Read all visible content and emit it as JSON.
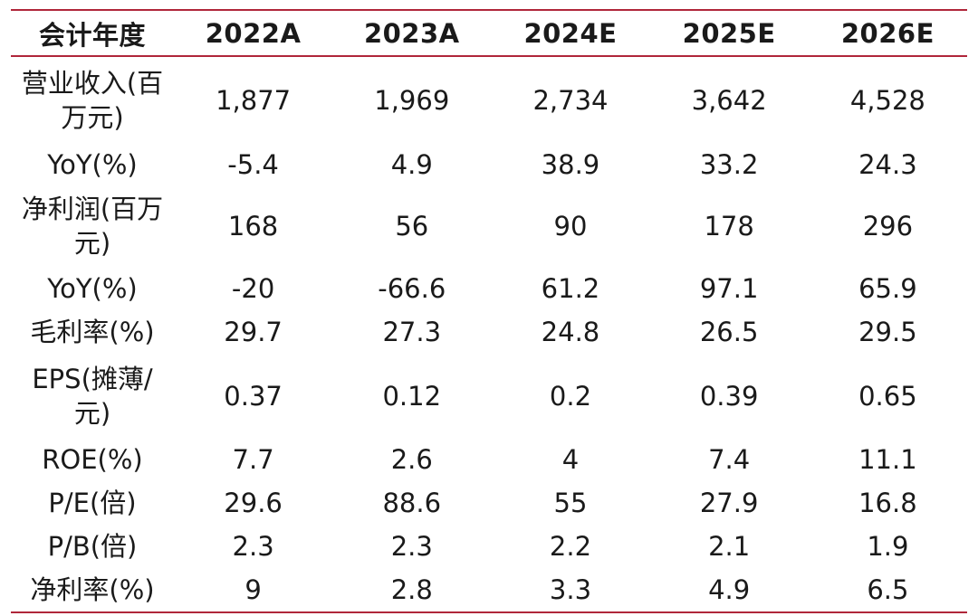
{
  "table": {
    "headers": [
      "会计年度",
      "2022A",
      "2023A",
      "2024E",
      "2025E",
      "2026E"
    ],
    "rows": [
      {
        "label": "营业收入(百万元)",
        "values": [
          "1,877",
          "1,969",
          "2,734",
          "3,642",
          "4,528"
        ]
      },
      {
        "label": "YoY(%)",
        "values": [
          "-5.4",
          "4.9",
          "38.9",
          "33.2",
          "24.3"
        ]
      },
      {
        "label": "净利润(百万元)",
        "values": [
          "168",
          "56",
          "90",
          "178",
          "296"
        ]
      },
      {
        "label": "YoY(%)",
        "values": [
          "-20",
          "-66.6",
          "61.2",
          "97.1",
          "65.9"
        ]
      },
      {
        "label": "毛利率(%)",
        "values": [
          "29.7",
          "27.3",
          "24.8",
          "26.5",
          "29.5"
        ]
      },
      {
        "label": "EPS(摊薄/元)",
        "values": [
          "0.37",
          "0.12",
          "0.2",
          "0.39",
          "0.65"
        ]
      },
      {
        "label": "ROE(%)",
        "values": [
          "7.7",
          "2.6",
          "4",
          "7.4",
          "11.1"
        ]
      },
      {
        "label": "P/E(倍)",
        "values": [
          "29.6",
          "88.6",
          "55",
          "27.9",
          "16.8"
        ]
      },
      {
        "label": "P/B(倍)",
        "values": [
          "2.3",
          "2.3",
          "2.2",
          "2.1",
          "1.9"
        ]
      },
      {
        "label": "净利率(%)",
        "values": [
          "9",
          "2.8",
          "3.3",
          "4.9",
          "6.5"
        ]
      }
    ]
  },
  "colors": {
    "rule": "#b0263a",
    "text": "#1a1a1a"
  }
}
